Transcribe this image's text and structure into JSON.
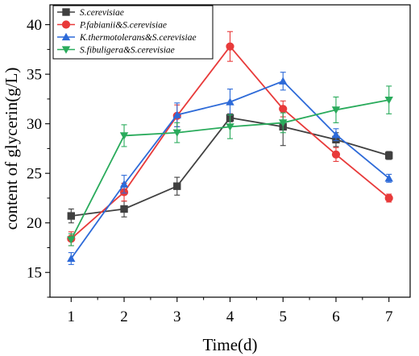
{
  "chart_data": {
    "type": "line",
    "xlabel": "Time(d)",
    "ylabel": "content of glycerin(g/L)",
    "x": [
      1,
      2,
      3,
      4,
      5,
      6,
      7
    ],
    "xlim": [
      0.6,
      7.4
    ],
    "ylim": [
      12.5,
      42
    ],
    "xticks": [
      1,
      2,
      3,
      4,
      5,
      6,
      7
    ],
    "yticks": [
      15,
      20,
      25,
      30,
      35,
      40
    ],
    "grid": false,
    "legend_position": "top-left",
    "series": [
      {
        "name": "S.cerevisiae",
        "color": "#404040",
        "marker": "square",
        "values": [
          20.7,
          21.4,
          23.7,
          30.6,
          29.7,
          28.4,
          26.8
        ],
        "errors": [
          0.7,
          0.8,
          0.9,
          0.4,
          1.9,
          0.7,
          0.4
        ]
      },
      {
        "name": "P.fabianii&S.cerevisiae",
        "color": "#e83a3a",
        "marker": "circle",
        "values": [
          18.4,
          23.1,
          30.8,
          37.8,
          31.5,
          26.9,
          22.5
        ],
        "errors": [
          0.7,
          0.9,
          1.1,
          1.5,
          0.8,
          0.7,
          0.4
        ]
      },
      {
        "name": "K.thermotolerans&S.cerevisiae",
        "color": "#2d6ad8",
        "marker": "triangle-up",
        "values": [
          16.4,
          23.9,
          30.9,
          32.2,
          34.3,
          28.9,
          24.5
        ],
        "errors": [
          0.6,
          0.9,
          1.2,
          1.3,
          0.9,
          0.6,
          0.4
        ]
      },
      {
        "name": "S.fibuligera&S.cerevisiae",
        "color": "#2aab5c",
        "marker": "triangle-down",
        "values": [
          18.3,
          28.8,
          29.1,
          29.7,
          30.1,
          31.4,
          32.4
        ],
        "errors": [
          0.6,
          1.1,
          1.0,
          1.2,
          1.0,
          1.3,
          1.4
        ]
      }
    ]
  }
}
